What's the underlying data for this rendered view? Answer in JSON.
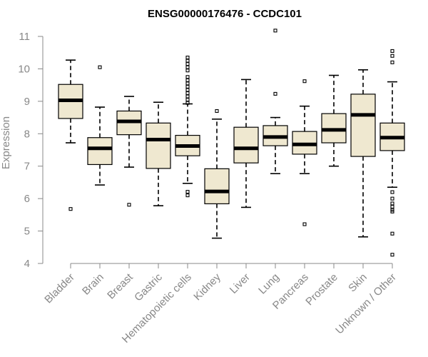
{
  "chart_data": {
    "type": "box",
    "title": "ENSG00000176476 - CCDC101",
    "ylabel": "Expression",
    "xlabel": "",
    "ylim": [
      4,
      11
    ],
    "yticks": [
      4,
      5,
      6,
      7,
      8,
      9,
      10,
      11
    ],
    "categories": [
      "Bladder",
      "Brain",
      "Breast",
      "Gastric",
      "Hematopoietic cells",
      "Kidney",
      "Liver",
      "Lung",
      "Pancreas",
      "Prostate",
      "Skin",
      "Unknown / Other"
    ],
    "boxes": [
      {
        "name": "Bladder",
        "whislo": 7.72,
        "q1": 8.47,
        "med": 9.03,
        "q3": 9.52,
        "whishi": 10.27,
        "fliers": [
          5.68
        ]
      },
      {
        "name": "Brain",
        "whislo": 6.42,
        "q1": 7.05,
        "med": 7.55,
        "q3": 7.88,
        "whishi": 8.82,
        "fliers": [
          10.05
        ]
      },
      {
        "name": "Breast",
        "whislo": 6.97,
        "q1": 7.97,
        "med": 8.38,
        "q3": 8.7,
        "whishi": 9.15,
        "fliers": [
          5.81
        ]
      },
      {
        "name": "Gastric",
        "whislo": 5.78,
        "q1": 6.93,
        "med": 7.82,
        "q3": 8.33,
        "whishi": 8.97,
        "fliers": []
      },
      {
        "name": "Hematopoietic cells",
        "whislo": 6.47,
        "q1": 7.32,
        "med": 7.62,
        "q3": 7.95,
        "whishi": 8.92,
        "fliers": [
          6.1,
          6.21,
          8.95,
          9.05,
          9.15,
          9.25,
          9.35,
          9.45,
          9.55,
          9.65,
          9.75,
          9.95,
          10.05,
          10.15,
          10.25,
          10.35
        ]
      },
      {
        "name": "Kidney",
        "whislo": 4.78,
        "q1": 5.84,
        "med": 6.22,
        "q3": 6.92,
        "whishi": 8.45,
        "fliers": [
          8.7
        ]
      },
      {
        "name": "Liver",
        "whislo": 5.73,
        "q1": 7.1,
        "med": 7.55,
        "q3": 8.2,
        "whishi": 9.67,
        "fliers": []
      },
      {
        "name": "Lung",
        "whislo": 6.77,
        "q1": 7.63,
        "med": 7.9,
        "q3": 8.25,
        "whishi": 8.5,
        "fliers": [
          9.23,
          11.18
        ]
      },
      {
        "name": "Pancreas",
        "whislo": 6.77,
        "q1": 7.37,
        "med": 7.67,
        "q3": 8.07,
        "whishi": 8.85,
        "fliers": [
          5.21,
          9.62
        ]
      },
      {
        "name": "Prostate",
        "whislo": 7.0,
        "q1": 7.72,
        "med": 8.12,
        "q3": 8.62,
        "whishi": 9.8,
        "fliers": []
      },
      {
        "name": "Skin",
        "whislo": 4.82,
        "q1": 7.3,
        "med": 8.58,
        "q3": 9.22,
        "whishi": 9.97,
        "fliers": []
      },
      {
        "name": "Unknown / Other",
        "whislo": 6.35,
        "q1": 7.48,
        "med": 7.88,
        "q3": 8.33,
        "whishi": 9.6,
        "fliers": [
          4.27,
          4.92,
          5.6,
          5.65,
          5.75,
          5.85,
          6.0,
          6.2,
          10.2,
          10.4,
          10.55
        ]
      }
    ],
    "colors": {
      "box_fill": "#efe8d0",
      "line": "#000000",
      "axis_text": "#888888"
    },
    "grid": false,
    "legend": "none"
  }
}
